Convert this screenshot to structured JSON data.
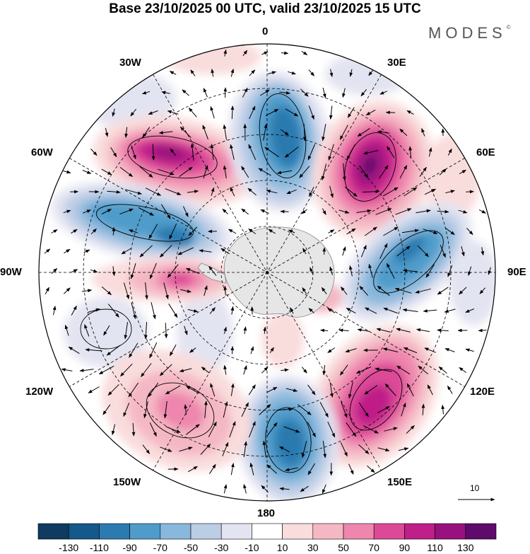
{
  "title": "Base 23/10/2025 00 UTC, valid 23/10/2025 15 UTC",
  "brand": {
    "name": "MODES",
    "mark": "©"
  },
  "longitude_labels": {
    "lon_0": "0",
    "lon_30e": "30E",
    "lon_60e": "60E",
    "lon_90e": "90E",
    "lon_120e": "120E",
    "lon_150e": "150E",
    "lon_180": "180",
    "lon_150w": "150W",
    "lon_120w": "120W",
    "lon_90w": "90W",
    "lon_60w": "60W",
    "lon_30w": "30W"
  },
  "vector_scale": {
    "label": "10"
  },
  "colorbar": {
    "colors": [
      "#0e3b5f",
      "#15588a",
      "#2b7ab0",
      "#4f9ccb",
      "#89b8dc",
      "#bccde6",
      "#e3e4f1",
      "#ffffff",
      "#f9dcdc",
      "#f4b8c4",
      "#ee86ad",
      "#dc4a97",
      "#bf1f88",
      "#97127e",
      "#5e0b6b"
    ],
    "tick_labels": [
      "-130",
      "-110",
      "-90",
      "-70",
      "-50",
      "-30",
      "-10",
      "10",
      "30",
      "50",
      "70",
      "90",
      "110",
      "130"
    ]
  },
  "anomaly_colors": {
    "land": "#e6e6e6",
    "coast": "#888888"
  }
}
